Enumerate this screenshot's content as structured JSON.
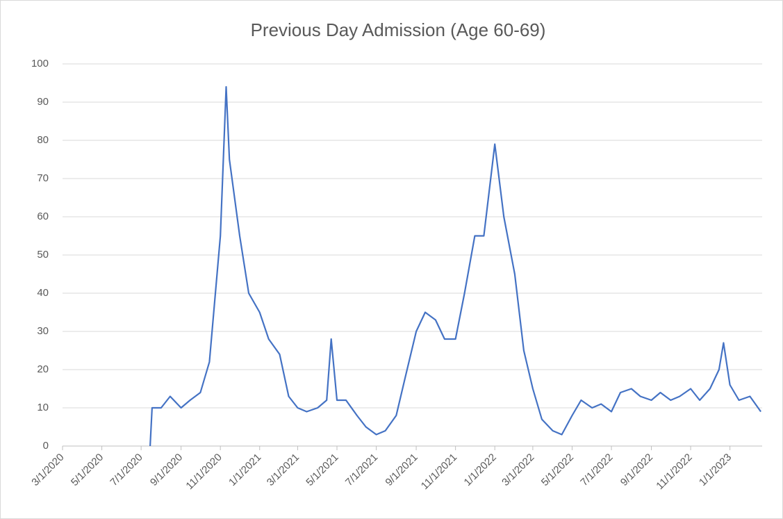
{
  "chart_data": {
    "type": "line",
    "title": "Previous Day Admission (Age 60-69)",
    "x": [
      "7/15/2020",
      "7/18/2020",
      "8/1/2020",
      "8/15/2020",
      "9/1/2020",
      "9/15/2020",
      "10/1/2020",
      "10/15/2020",
      "11/1/2020",
      "11/10/2020",
      "11/15/2020",
      "12/1/2020",
      "12/15/2020",
      "1/1/2021",
      "1/15/2021",
      "2/1/2021",
      "2/15/2021",
      "3/1/2021",
      "3/15/2021",
      "4/1/2021",
      "4/15/2021",
      "4/22/2021",
      "5/1/2021",
      "5/15/2021",
      "6/1/2021",
      "6/15/2021",
      "7/1/2021",
      "7/15/2021",
      "8/1/2021",
      "8/15/2021",
      "9/1/2021",
      "9/15/2021",
      "10/1/2021",
      "10/15/2021",
      "11/1/2021",
      "11/15/2021",
      "12/1/2021",
      "12/15/2021",
      "1/1/2022",
      "1/15/2022",
      "2/1/2022",
      "2/15/2022",
      "3/1/2022",
      "3/15/2022",
      "4/1/2022",
      "4/15/2022",
      "5/1/2022",
      "5/15/2022",
      "6/1/2022",
      "6/15/2022",
      "7/1/2022",
      "7/15/2022",
      "8/1/2022",
      "8/15/2022",
      "9/1/2022",
      "9/15/2022",
      "10/1/2022",
      "10/15/2022",
      "11/1/2022",
      "11/15/2022",
      "12/1/2022",
      "12/15/2022",
      "12/22/2022",
      "1/1/2023",
      "1/15/2023",
      "2/1/2023",
      "2/18/2023"
    ],
    "series": [
      {
        "name": "Previous Day Admission (Age 60-69)",
        "color": "#4472c4",
        "values": [
          0,
          10,
          10,
          13,
          10,
          12,
          14,
          22,
          55,
          94,
          75,
          55,
          40,
          35,
          28,
          24,
          13,
          10,
          9,
          10,
          12,
          28,
          12,
          12,
          8,
          5,
          3,
          4,
          8,
          18,
          30,
          35,
          33,
          28,
          28,
          40,
          55,
          55,
          79,
          60,
          45,
          25,
          15,
          7,
          4,
          3,
          8,
          12,
          10,
          11,
          9,
          14,
          15,
          13,
          12,
          14,
          12,
          13,
          15,
          12,
          15,
          20,
          27,
          16,
          12,
          13,
          9
        ]
      }
    ],
    "xlim": [
      "3/1/2020",
      "2/20/2023"
    ],
    "xticks": [
      "3/1/2020",
      "5/1/2020",
      "7/1/2020",
      "9/1/2020",
      "11/1/2020",
      "1/1/2021",
      "3/1/2021",
      "5/1/2021",
      "7/1/2021",
      "9/1/2021",
      "11/1/2021",
      "1/1/2022",
      "3/1/2022",
      "5/1/2022",
      "7/1/2022",
      "9/1/2022",
      "11/1/2022",
      "1/1/2023"
    ],
    "ylim": [
      0,
      100
    ],
    "yticks": [
      0,
      10,
      20,
      30,
      40,
      50,
      60,
      70,
      80,
      90,
      100
    ],
    "grid": true
  }
}
